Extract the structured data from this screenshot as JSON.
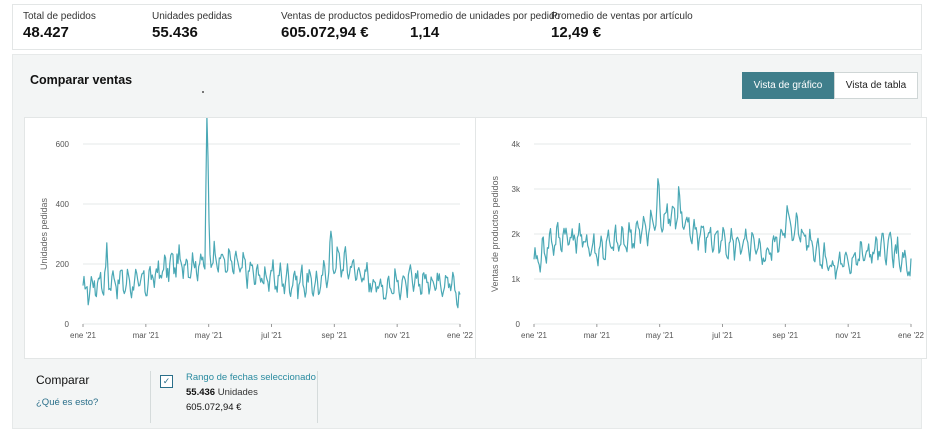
{
  "metrics": [
    {
      "label": "Total de pedidos",
      "value": "48.427"
    },
    {
      "label": "Unidades pedidas",
      "value": "55.436"
    },
    {
      "label": "Ventas de productos pedidos",
      "value": "605.072,94 €"
    },
    {
      "label": "Promedio de unidades por pedido",
      "value": "1,14"
    },
    {
      "label": "Promedio de ventas por artículo",
      "value": "12,49 €"
    }
  ],
  "compare_sales": {
    "title": "Comparar ventas",
    "view_chart_label": "Vista de gráfico",
    "view_table_label": "Vista de tabla",
    "active_view": "chart"
  },
  "compare": {
    "title": "Comparar",
    "help_link": "¿Qué es esto?",
    "checkbox_checked": true,
    "range_label": "Rango de fechas seleccionado",
    "units_value": "55.436",
    "units_suffix": "Unidades",
    "sales_value": "605.072,94 €"
  },
  "colors": {
    "line": "#4aa8b5",
    "accent": "#3f7e8b",
    "link": "#2a6f8a"
  },
  "chart_data": [
    {
      "type": "line",
      "ylabel": "Unidades pedidas",
      "ylim": [
        0,
        600
      ],
      "yticks": [
        0,
        200,
        400,
        600
      ],
      "ytick_labels": [
        "0",
        "200",
        "400",
        "600"
      ],
      "xticks": [
        "ene '21",
        "mar '21",
        "may '21",
        "jul '21",
        "sep '21",
        "nov '21",
        "ene '22"
      ],
      "grid": true,
      "anchors": [
        [
          0,
          105
        ],
        [
          10,
          130
        ],
        [
          20,
          150
        ],
        [
          40,
          140
        ],
        [
          60,
          135
        ],
        [
          75,
          175
        ],
        [
          90,
          205
        ],
        [
          100,
          200
        ],
        [
          110,
          195
        ],
        [
          118,
          215
        ],
        [
          120,
          480
        ],
        [
          123,
          240
        ],
        [
          135,
          210
        ],
        [
          150,
          195
        ],
        [
          170,
          160
        ],
        [
          190,
          150
        ],
        [
          210,
          145
        ],
        [
          230,
          130
        ],
        [
          240,
          215
        ],
        [
          255,
          200
        ],
        [
          270,
          165
        ],
        [
          290,
          120
        ],
        [
          300,
          130
        ],
        [
          320,
          140
        ],
        [
          340,
          145
        ],
        [
          355,
          150
        ],
        [
          360,
          110
        ],
        [
          365,
          90
        ]
      ],
      "spikes": [
        [
          23,
          70
        ],
        [
          120,
          200
        ],
        [
          240,
          60
        ]
      ]
    },
    {
      "type": "line",
      "ylabel": "Ventas de productos pedidos",
      "ylim": [
        0,
        4000
      ],
      "yticks": [
        0,
        1000,
        2000,
        3000,
        4000
      ],
      "ytick_labels": [
        "0",
        "1k",
        "2k",
        "3k",
        "4k"
      ],
      "xticks": [
        "ene '21",
        "mar '21",
        "may '21",
        "jul '21",
        "sep '21",
        "nov '21",
        "ene '22"
      ],
      "grid": true,
      "anchors": [
        [
          0,
          1300
        ],
        [
          15,
          1800
        ],
        [
          30,
          1950
        ],
        [
          45,
          1900
        ],
        [
          60,
          1600
        ],
        [
          80,
          1800
        ],
        [
          100,
          2000
        ],
        [
          120,
          2300
        ],
        [
          130,
          2500
        ],
        [
          150,
          2100
        ],
        [
          170,
          1900
        ],
        [
          190,
          1800
        ],
        [
          210,
          1700
        ],
        [
          225,
          1500
        ],
        [
          240,
          2000
        ],
        [
          255,
          2150
        ],
        [
          270,
          1750
        ],
        [
          290,
          1250
        ],
        [
          310,
          1450
        ],
        [
          330,
          1600
        ],
        [
          345,
          1750
        ],
        [
          360,
          1300
        ],
        [
          365,
          1150
        ]
      ],
      "spikes": [
        [
          120,
          800
        ],
        [
          140,
          650
        ],
        [
          245,
          500
        ]
      ]
    }
  ]
}
